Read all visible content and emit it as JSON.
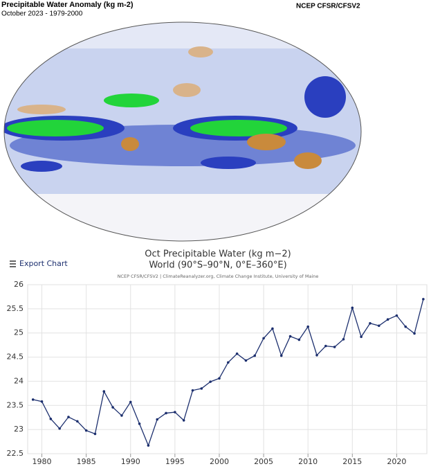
{
  "map": {
    "title": "Precipitable Water Anomaly (kg m-2)",
    "subtitle": "October 2023 - 1979-2000",
    "source": "NCEP CFSR/CFSV2"
  },
  "export_label": "Export Chart",
  "chart_data": {
    "type": "line",
    "title": "Oct Precipitable Water (kg m−2)",
    "subtitle": "World (90°S–90°N, 0°E–360°E)",
    "credit": "NCEP CFSR/CFSV2 | ClimateReanalyzer.org, Climate Change Institute, University of Maine",
    "x": [
      1979,
      1980,
      1981,
      1982,
      1983,
      1984,
      1985,
      1986,
      1987,
      1988,
      1989,
      1990,
      1991,
      1992,
      1993,
      1994,
      1995,
      1996,
      1997,
      1998,
      1999,
      2000,
      2001,
      2002,
      2003,
      2004,
      2005,
      2006,
      2007,
      2008,
      2009,
      2010,
      2011,
      2012,
      2013,
      2014,
      2015,
      2016,
      2017,
      2018,
      2019,
      2020,
      2021,
      2022,
      2023
    ],
    "series": [
      {
        "color": "#1c2f6e",
        "values": [
          23.62,
          23.58,
          23.22,
          23.02,
          23.26,
          23.17,
          22.98,
          22.91,
          23.79,
          23.46,
          23.29,
          23.57,
          23.12,
          22.67,
          23.21,
          23.34,
          23.36,
          23.19,
          23.81,
          23.85,
          23.99,
          24.06,
          24.39,
          24.57,
          24.43,
          24.53,
          24.89,
          25.09,
          24.53,
          24.93,
          24.86,
          25.13,
          24.54,
          24.73,
          24.71,
          24.87,
          25.52,
          24.92,
          25.2,
          25.15,
          25.28,
          25.36,
          25.13,
          24.99,
          25.7
        ]
      }
    ],
    "xlim": [
      1978.4,
      2023.4
    ],
    "ylim": [
      22.5,
      26
    ],
    "xticks": [
      1980,
      1985,
      1990,
      1995,
      2000,
      2005,
      2010,
      2015,
      2020
    ],
    "yticks": [
      22.5,
      23,
      23.5,
      24,
      24.5,
      25,
      25.5,
      26
    ],
    "grid": true
  }
}
